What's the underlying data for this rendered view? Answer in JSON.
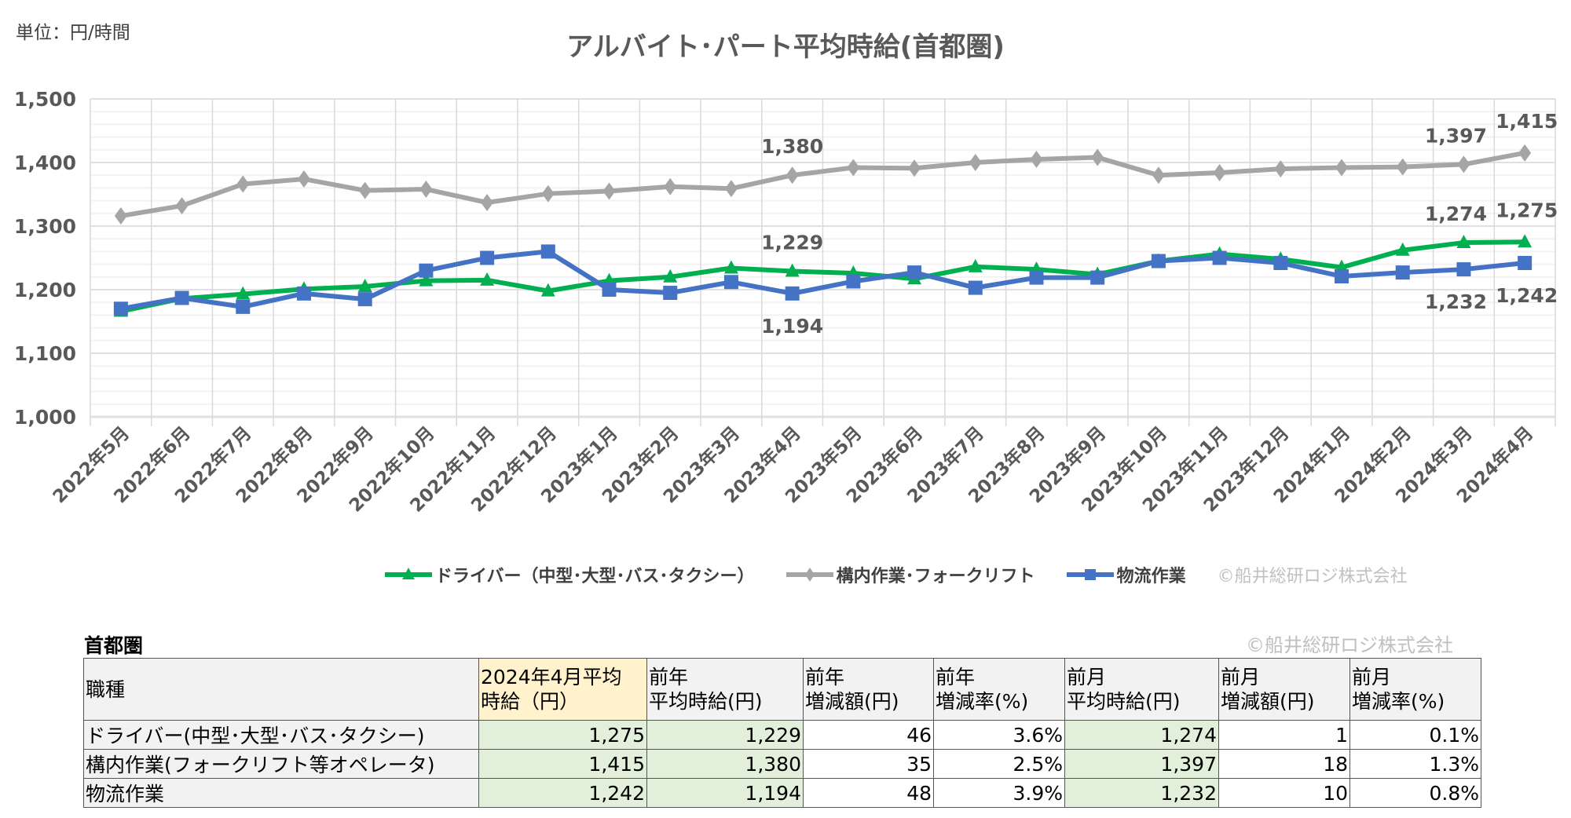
{
  "unit_label": "単位：円/時間",
  "chart_data": {
    "type": "line",
    "title": "アルバイト･パート平均時給(首都圏)",
    "categories": [
      "2022年5月",
      "2022年6月",
      "2022年7月",
      "2022年8月",
      "2022年9月",
      "2022年10月",
      "2022年11月",
      "2022年12月",
      "2023年1月",
      "2023年2月",
      "2023年3月",
      "2023年4月",
      "2023年5月",
      "2023年6月",
      "2023年7月",
      "2023年8月",
      "2023年9月",
      "2023年10月",
      "2023年11月",
      "2023年12月",
      "2024年1月",
      "2024年2月",
      "2024年3月",
      "2024年4月"
    ],
    "ylim": [
      1000,
      1500
    ],
    "yticks": [
      1000,
      1100,
      1200,
      1300,
      1400,
      1500
    ],
    "ytick_labels": [
      "1,000",
      "1,100",
      "1,200",
      "1,300",
      "1,400",
      "1,500"
    ],
    "grid": true,
    "legend_position": "bottom",
    "series": [
      {
        "name": "ドライバー（中型･大型･バス･タクシー）",
        "color": "#00b050",
        "marker": "triangle",
        "values": [
          1166,
          1186,
          1193,
          1201,
          1205,
          1214,
          1215,
          1198,
          1214,
          1220,
          1234,
          1229,
          1226,
          1217,
          1236,
          1232,
          1224,
          1245,
          1256,
          1248,
          1235,
          1262,
          1274,
          1275
        ],
        "labels": [
          {
            "index": 11,
            "text": "1,229",
            "pos": "above"
          },
          {
            "index": 22,
            "text": "1,274",
            "pos": "above"
          },
          {
            "index": 23,
            "text": "1,275",
            "pos": "above"
          }
        ]
      },
      {
        "name": "構内作業･フォークリフト",
        "color": "#a5a5a5",
        "marker": "diamond",
        "values": [
          1316,
          1332,
          1366,
          1374,
          1356,
          1358,
          1337,
          1351,
          1355,
          1362,
          1359,
          1380,
          1392,
          1391,
          1400,
          1405,
          1408,
          1380,
          1384,
          1390,
          1392,
          1393,
          1397,
          1415
        ],
        "labels": [
          {
            "index": 11,
            "text": "1,380",
            "pos": "above"
          },
          {
            "index": 22,
            "text": "1,397",
            "pos": "above"
          },
          {
            "index": 23,
            "text": "1,415",
            "pos": "above"
          }
        ]
      },
      {
        "name": "物流作業",
        "color": "#4472c4",
        "marker": "square",
        "values": [
          1170,
          1187,
          1173,
          1194,
          1185,
          1230,
          1250,
          1260,
          1200,
          1195,
          1212,
          1194,
          1213,
          1227,
          1203,
          1219,
          1219,
          1245,
          1250,
          1242,
          1221,
          1227,
          1232,
          1242
        ],
        "labels": [
          {
            "index": 11,
            "text": "1,194",
            "pos": "below"
          },
          {
            "index": 22,
            "text": "1,232",
            "pos": "below"
          },
          {
            "index": 23,
            "text": "1,242",
            "pos": "below"
          }
        ]
      }
    ],
    "copyright": "©船井総研ロジ株式会社"
  },
  "table": {
    "title": "首都圏",
    "copyright": "©船井総研ロジ株式会社",
    "headers": [
      [
        "職種"
      ],
      [
        "2024年4月平均",
        "時給（円）"
      ],
      [
        "前年",
        "平均時給(円)"
      ],
      [
        "前年",
        "増減額(円)"
      ],
      [
        "前年",
        "増減率(%)"
      ],
      [
        "前月",
        "平均時給(円)"
      ],
      [
        "前月",
        "増減額(円)"
      ],
      [
        "前月",
        "増減率(%)"
      ]
    ],
    "rows": [
      [
        "ドライバー(中型･大型･バス･タクシー)",
        "1,275",
        "1,229",
        "46",
        "3.6%",
        "1,274",
        "1",
        "0.1%"
      ],
      [
        "構内作業(フォークリフト等オペレータ)",
        "1,415",
        "1,380",
        "35",
        "2.5%",
        "1,397",
        "18",
        "1.3%"
      ],
      [
        "物流作業",
        "1,242",
        "1,194",
        "48",
        "3.9%",
        "1,232",
        "10",
        "0.8%"
      ]
    ]
  }
}
